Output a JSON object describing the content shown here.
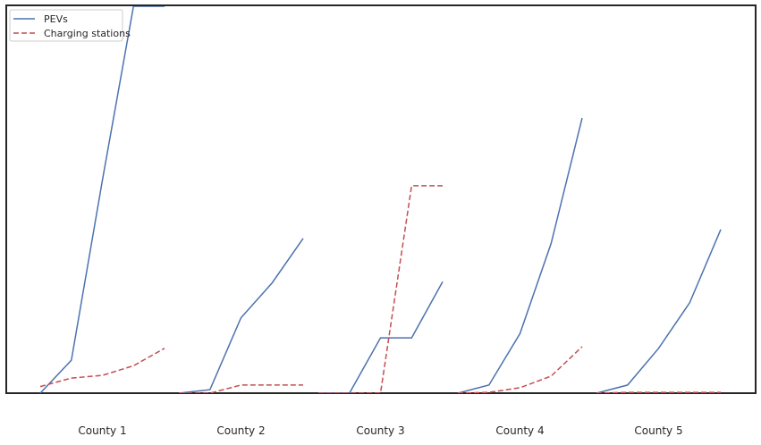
{
  "chart_data": {
    "type": "line",
    "categories": [
      "County 1",
      "County 2",
      "County 3",
      "County 4",
      "County 5"
    ],
    "x_points_per_group": [
      1,
      2,
      3,
      4,
      5
    ],
    "ylim": [
      0,
      100
    ],
    "grid": false,
    "legend_position": "top-left",
    "series": [
      {
        "name": "PEVs",
        "color": "#4c72b0",
        "dash": "solid",
        "groups": [
          [
            0,
            8.5,
            55,
            100,
            100
          ],
          [
            0,
            0.9,
            19.5,
            28.5,
            40
          ],
          [
            0,
            0,
            14.3,
            14.3,
            28.8
          ],
          [
            0,
            2.1,
            15.4,
            38.7,
            71.1
          ],
          [
            0,
            2.1,
            11.6,
            23.4,
            42.3
          ]
        ]
      },
      {
        "name": "Charging stations",
        "color": "#c44e52",
        "dash": "dashed",
        "groups": [
          [
            1.7,
            3.9,
            4.6,
            7.1,
            11.6
          ],
          [
            0,
            0,
            2.1,
            2.1,
            2.1
          ],
          [
            0,
            0,
            0,
            53.6,
            53.6
          ],
          [
            0,
            0.2,
            1.4,
            4.4,
            12.0
          ],
          [
            0,
            0.2,
            0.2,
            0.2,
            0.2
          ]
        ]
      }
    ]
  }
}
